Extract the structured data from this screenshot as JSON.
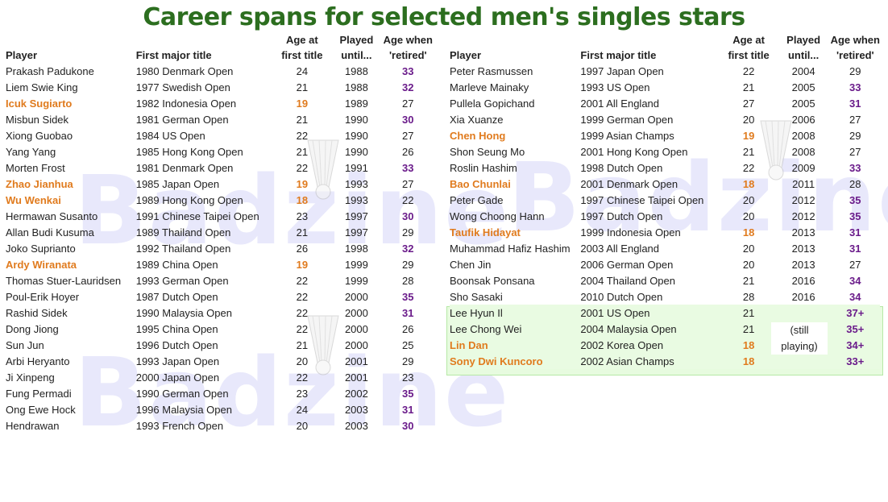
{
  "title": "Career spans for selected men's singles stars",
  "watermark": "Badzine",
  "icons": {
    "shuttlecock": "shuttlecock-icon"
  },
  "colors": {
    "title": "#2c6e1f",
    "highlight_player": "#e07b1e",
    "highlight_age": "#6a1b8a",
    "active_box": "#e7fbdf"
  },
  "headers": {
    "player": "Player",
    "first_title": "First major title",
    "age_line1": "Age at",
    "age_line2": "first title",
    "played_line1": "Played",
    "played_line2": "until...",
    "retired_line1": "Age when",
    "retired_line2": "'retired'"
  },
  "still_playing": "(still playing)",
  "left": [
    {
      "player": "Prakash Padukone",
      "title": "1980 Denmark Open",
      "age": "24",
      "until": "1988",
      "retired": "33",
      "hp": false,
      "ha": false,
      "hr": true
    },
    {
      "player": "Liem Swie King",
      "title": "1977 Swedish Open",
      "age": "21",
      "until": "1988",
      "retired": "32",
      "hp": false,
      "ha": false,
      "hr": true
    },
    {
      "player": "Icuk Sugiarto",
      "title": "1982 Indonesia Open",
      "age": "19",
      "until": "1989",
      "retired": "27",
      "hp": true,
      "ha": true,
      "hr": false
    },
    {
      "player": "Misbun Sidek",
      "title": "1981  German Open",
      "age": "21",
      "until": "1990",
      "retired": "30",
      "hp": false,
      "ha": false,
      "hr": true
    },
    {
      "player": "Xiong Guobao",
      "title": "1984  US Open",
      "age": "22",
      "until": "1990",
      "retired": "27",
      "hp": false,
      "ha": false,
      "hr": false
    },
    {
      "player": "Yang Yang",
      "title": "1985 Hong Kong Open",
      "age": "21",
      "until": "1990",
      "retired": "26",
      "hp": false,
      "ha": false,
      "hr": false
    },
    {
      "player": "Morten Frost",
      "title": "1981 Denmark Open",
      "age": "22",
      "until": "1991",
      "retired": "33",
      "hp": false,
      "ha": false,
      "hr": true
    },
    {
      "player": "Zhao Jianhua",
      "title": "1985  Japan Open",
      "age": "19",
      "until": "1993",
      "retired": "27",
      "hp": true,
      "ha": true,
      "hr": false
    },
    {
      "player": "Wu Wenkai",
      "title": "1989 Hong Kong Open",
      "age": "18",
      "until": "1993",
      "retired": "22",
      "hp": true,
      "ha": true,
      "hr": false
    },
    {
      "player": "Hermawan Susanto",
      "title": "1991  Chinese Taipei Open",
      "age": "23",
      "until": "1997",
      "retired": "30",
      "hp": false,
      "ha": false,
      "hr": true
    },
    {
      "player": "Allan Budi Kusuma",
      "title": "1989  Thailand Open",
      "age": "21",
      "until": "1997",
      "retired": "29",
      "hp": false,
      "ha": false,
      "hr": false
    },
    {
      "player": "Joko Suprianto",
      "title": "1992  Thailand Open",
      "age": "26",
      "until": "1998",
      "retired": "32",
      "hp": false,
      "ha": false,
      "hr": true
    },
    {
      "player": "Ardy Wiranata",
      "title": "1989  China Open",
      "age": "19",
      "until": "1999",
      "retired": "29",
      "hp": true,
      "ha": true,
      "hr": false
    },
    {
      "player": "Thomas Stuer-Lauridsen",
      "title": "1993  German Open",
      "age": "22",
      "until": "1999",
      "retired": "28",
      "hp": false,
      "ha": false,
      "hr": false
    },
    {
      "player": "Poul-Erik Hoyer",
      "title": "1987  Dutch Open",
      "age": "22",
      "until": "2000",
      "retired": "35",
      "hp": false,
      "ha": false,
      "hr": true
    },
    {
      "player": "Rashid Sidek",
      "title": "1990 Malaysia Open",
      "age": "22",
      "until": "2000",
      "retired": "31",
      "hp": false,
      "ha": false,
      "hr": true
    },
    {
      "player": "Dong Jiong",
      "title": "1995 China Open",
      "age": "22",
      "until": "2000",
      "retired": "26",
      "hp": false,
      "ha": false,
      "hr": false
    },
    {
      "player": "Sun Jun",
      "title": "1996  Dutch Open",
      "age": "21",
      "until": "2000",
      "retired": "25",
      "hp": false,
      "ha": false,
      "hr": false
    },
    {
      "player": "Arbi Heryanto",
      "title": "1993  Japan Open",
      "age": "20",
      "until": "2001",
      "retired": "29",
      "hp": false,
      "ha": false,
      "hr": false
    },
    {
      "player": "Ji Xinpeng",
      "title": "2000  Japan Open",
      "age": "22",
      "until": "2001",
      "retired": "23",
      "hp": false,
      "ha": false,
      "hr": false
    },
    {
      "player": "Fung Permadi",
      "title": "1990  German Open",
      "age": "23",
      "until": "2002",
      "retired": "35",
      "hp": false,
      "ha": false,
      "hr": true
    },
    {
      "player": "Ong Ewe Hock",
      "title": "1996  Malaysia Open",
      "age": "24",
      "until": "2003",
      "retired": "31",
      "hp": false,
      "ha": false,
      "hr": true
    },
    {
      "player": "Hendrawan",
      "title": "1993 French Open",
      "age": "20",
      "until": "2003",
      "retired": "30",
      "hp": false,
      "ha": false,
      "hr": true
    }
  ],
  "right": [
    {
      "player": "Peter Rasmussen",
      "title": "1997  Japan Open",
      "age": "22",
      "until": "2004",
      "retired": "29",
      "hp": false,
      "ha": false,
      "hr": false
    },
    {
      "player": "Marleve Mainaky",
      "title": "1993  US Open",
      "age": "21",
      "until": "2005",
      "retired": "33",
      "hp": false,
      "ha": false,
      "hr": true
    },
    {
      "player": "Pullela Gopichand",
      "title": "2001 All England",
      "age": "27",
      "until": "2005",
      "retired": "31",
      "hp": false,
      "ha": false,
      "hr": true
    },
    {
      "player": "Xia Xuanze",
      "title": "1999  German Open",
      "age": "20",
      "until": "2006",
      "retired": "27",
      "hp": false,
      "ha": false,
      "hr": false
    },
    {
      "player": "Chen Hong",
      "title": "1999 Asian Champs",
      "age": "19",
      "until": "2008",
      "retired": "29",
      "hp": true,
      "ha": true,
      "hr": false
    },
    {
      "player": "Shon Seung Mo",
      "title": "2001 Hong Kong Open",
      "age": "21",
      "until": "2008",
      "retired": "27",
      "hp": false,
      "ha": false,
      "hr": false
    },
    {
      "player": "Roslin Hashim",
      "title": "1998 Dutch Open",
      "age": "22",
      "until": "2009",
      "retired": "33",
      "hp": false,
      "ha": false,
      "hr": true
    },
    {
      "player": "Bao Chunlai",
      "title": "2001 Denmark Open",
      "age": "18",
      "until": "2011",
      "retired": "28",
      "hp": true,
      "ha": true,
      "hr": false
    },
    {
      "player": "Peter Gade",
      "title": "1997  Chinese Taipei Open",
      "age": "20",
      "until": "2012",
      "retired": "35",
      "hp": false,
      "ha": false,
      "hr": true
    },
    {
      "player": "Wong Choong Hann",
      "title": "1997 Dutch Open",
      "age": "20",
      "until": "2012",
      "retired": "35",
      "hp": false,
      "ha": false,
      "hr": true
    },
    {
      "player": "Taufik Hidayat",
      "title": "1999 Indonesia Open",
      "age": "18",
      "until": "2013",
      "retired": "31",
      "hp": true,
      "ha": true,
      "hr": true
    },
    {
      "player": "Muhammad Hafiz Hashim",
      "title": "2003 All England",
      "age": "20",
      "until": "2013",
      "retired": "31",
      "hp": false,
      "ha": false,
      "hr": true
    },
    {
      "player": "Chen Jin",
      "title": "2006 German Open",
      "age": "20",
      "until": "2013",
      "retired": "27",
      "hp": false,
      "ha": false,
      "hr": false
    },
    {
      "player": "Boonsak Ponsana",
      "title": "2004  Thailand Open",
      "age": "21",
      "until": "2016",
      "retired": "34",
      "hp": false,
      "ha": false,
      "hr": true
    },
    {
      "player": "Sho Sasaki",
      "title": "2010 Dutch Open",
      "age": "28",
      "until": "2016",
      "retired": "34",
      "hp": false,
      "ha": false,
      "hr": true
    },
    {
      "player": "Lee Hyun Il",
      "title": "2001 US Open",
      "age": "21",
      "until": "",
      "retired": "37+",
      "hp": false,
      "ha": false,
      "hr": true,
      "active": true
    },
    {
      "player": "Lee Chong Wei",
      "title": "2004  Malaysia Open",
      "age": "21",
      "until": "",
      "retired": "35+",
      "hp": false,
      "ha": false,
      "hr": true,
      "active": true
    },
    {
      "player": "Lin Dan",
      "title": "2002 Korea Open",
      "age": "18",
      "until": "",
      "retired": "34+",
      "hp": true,
      "ha": true,
      "hr": true,
      "active": true
    },
    {
      "player": "Sony Dwi Kuncoro",
      "title": "2002 Asian Champs",
      "age": "18",
      "until": "",
      "retired": "33+",
      "hp": true,
      "ha": true,
      "hr": true,
      "active": true
    }
  ]
}
